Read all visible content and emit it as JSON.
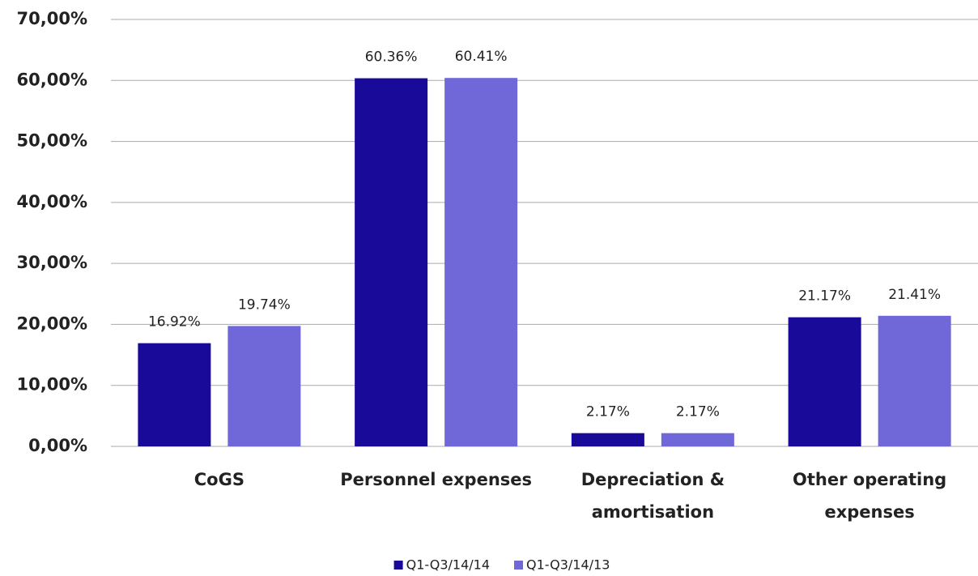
{
  "chart_data": {
    "type": "bar",
    "categories": [
      [
        "CoGS"
      ],
      [
        "Personnel expenses"
      ],
      [
        "Depreciation &",
        "amortisation"
      ],
      [
        "Other operating",
        "expenses"
      ]
    ],
    "series": [
      {
        "name": "Q1-Q3/14/14",
        "color": "#1a0a9a",
        "values": [
          16.92,
          60.36,
          2.17,
          21.17
        ],
        "value_labels": [
          "16.92%",
          "60.36%",
          "2.17%",
          "21.17%"
        ]
      },
      {
        "name": "Q1-Q3/14/13",
        "color": "#7068d8",
        "values": [
          19.74,
          60.41,
          2.17,
          21.41
        ],
        "value_labels": [
          "19.74%",
          "60.41%",
          "2.17%",
          "21.41%"
        ]
      }
    ],
    "ylim": [
      0,
      70
    ],
    "yticks": [
      {
        "value": 0,
        "label": "0,00%"
      },
      {
        "value": 10,
        "label": "10,00%"
      },
      {
        "value": 20,
        "label": "20,00%"
      },
      {
        "value": 30,
        "label": "30,00%"
      },
      {
        "value": 40,
        "label": "40,00%"
      },
      {
        "value": 50,
        "label": "50,00%"
      },
      {
        "value": 60,
        "label": "60,00%"
      },
      {
        "value": 70,
        "label": "70,00%"
      }
    ],
    "grid": true,
    "legend": "bottom"
  }
}
